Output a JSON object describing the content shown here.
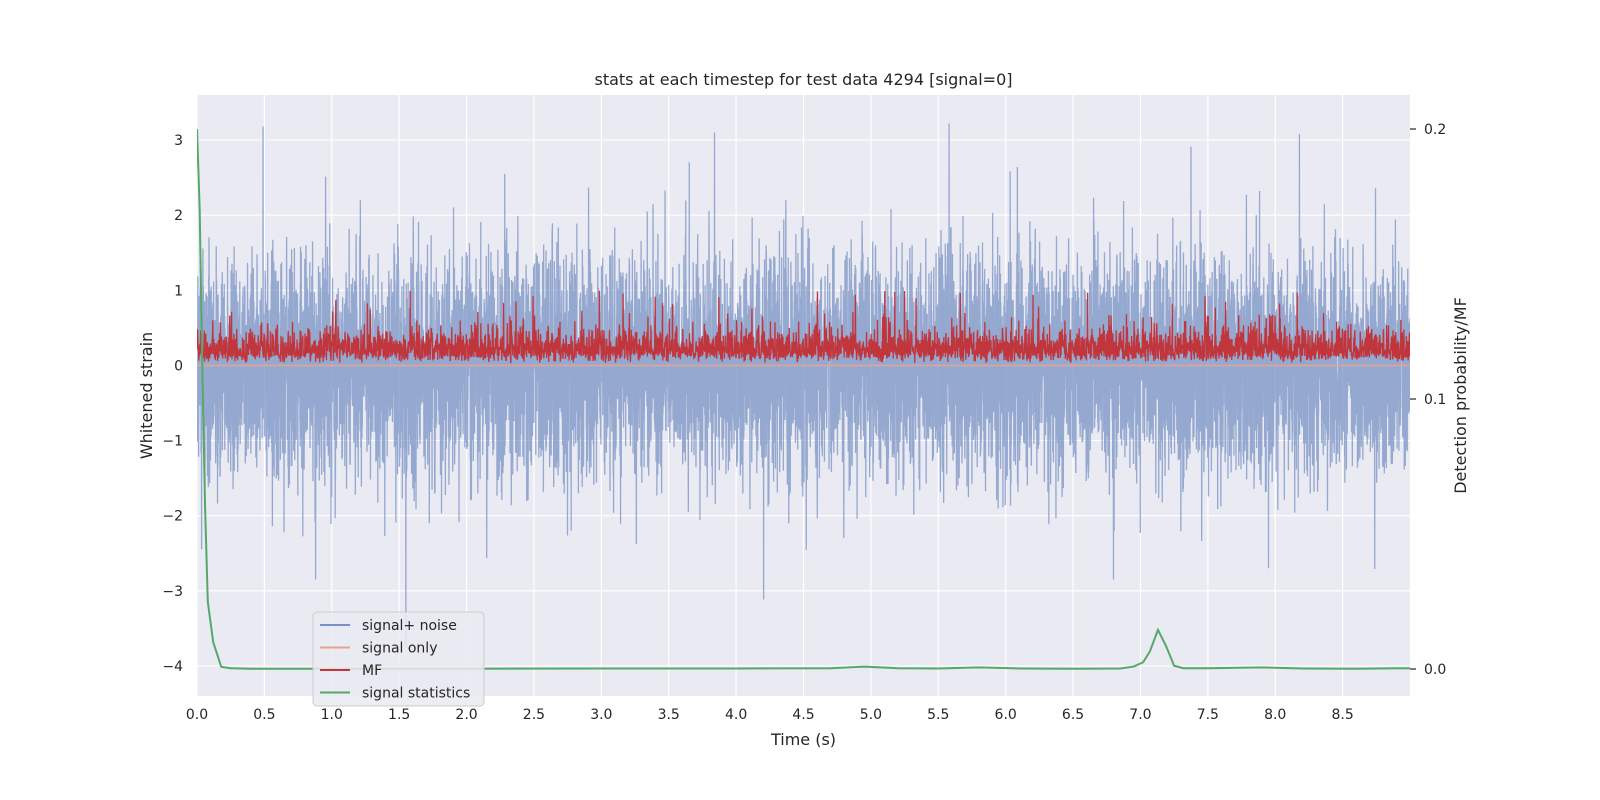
{
  "chart_data": {
    "type": "line",
    "title": "stats at each timestep for test data 4294 [signal=0]",
    "xlabel": "Time (s)",
    "ylabel": "Whitened strain",
    "y2label": "Detection probability/MF",
    "xlim": [
      0.0,
      9.0
    ],
    "ylim": [
      -4.4,
      3.6
    ],
    "y2lim": [
      -0.01,
      0.2126
    ],
    "xticks": [
      "0.0",
      "0.5",
      "1.0",
      "1.5",
      "2.0",
      "2.5",
      "3.0",
      "3.5",
      "4.0",
      "4.5",
      "5.0",
      "5.5",
      "6.0",
      "6.5",
      "7.0",
      "7.5",
      "8.0",
      "8.5"
    ],
    "yticks": [
      "−4",
      "−3",
      "−2",
      "−1",
      "0",
      "1",
      "2",
      "3"
    ],
    "y2ticks": [
      "0.0",
      "0.1",
      "0.2"
    ],
    "grid": true,
    "legend_position": "lower-left",
    "series": [
      {
        "name": "signal+ noise",
        "axis": "left",
        "color": "#7891c4",
        "sample_rate_hz": 2048,
        "amplitude_std": 0.72,
        "extremes": [
          {
            "x": 0.49,
            "y": 3.18
          },
          {
            "x": 0.88,
            "y": -2.85
          },
          {
            "x": 1.55,
            "y": -3.75
          },
          {
            "x": 3.84,
            "y": 3.1
          },
          {
            "x": 5.58,
            "y": 3.22
          },
          {
            "x": 6.8,
            "y": -2.85
          },
          {
            "x": 8.18,
            "y": 3.08
          },
          {
            "x": 7.95,
            "y": -2.7
          }
        ]
      },
      {
        "name": "signal only",
        "axis": "left",
        "color": "#e8a48a",
        "x": [
          0.0,
          9.0
        ],
        "y": [
          0.0,
          0.0
        ]
      },
      {
        "name": "MF",
        "axis": "left",
        "color": "#c1363c",
        "baseline": 0.03,
        "typical_max": 0.6,
        "peak_max": 1.0
      },
      {
        "name": "signal statistics",
        "axis": "right",
        "color": "#55a868",
        "x": [
          0.0,
          0.02,
          0.04,
          0.06,
          0.08,
          0.12,
          0.18,
          0.25,
          0.4,
          1.0,
          2.0,
          3.0,
          4.0,
          4.7,
          4.95,
          5.2,
          5.5,
          5.8,
          6.1,
          6.5,
          6.85,
          6.95,
          7.02,
          7.07,
          7.13,
          7.19,
          7.25,
          7.32,
          7.5,
          7.9,
          8.2,
          8.6,
          9.0
        ],
        "y": [
          0.2,
          0.17,
          0.11,
          0.06,
          0.025,
          0.01,
          0.0008,
          0.0003,
          0.0001,
          0.0001,
          0.0001,
          0.0002,
          0.0002,
          0.0003,
          0.0009,
          0.0003,
          0.0002,
          0.0006,
          0.0002,
          0.0001,
          0.0002,
          0.0009,
          0.0025,
          0.0065,
          0.0145,
          0.0085,
          0.0012,
          0.0003,
          0.0003,
          0.0006,
          0.0002,
          0.0001,
          0.0003
        ]
      }
    ]
  }
}
